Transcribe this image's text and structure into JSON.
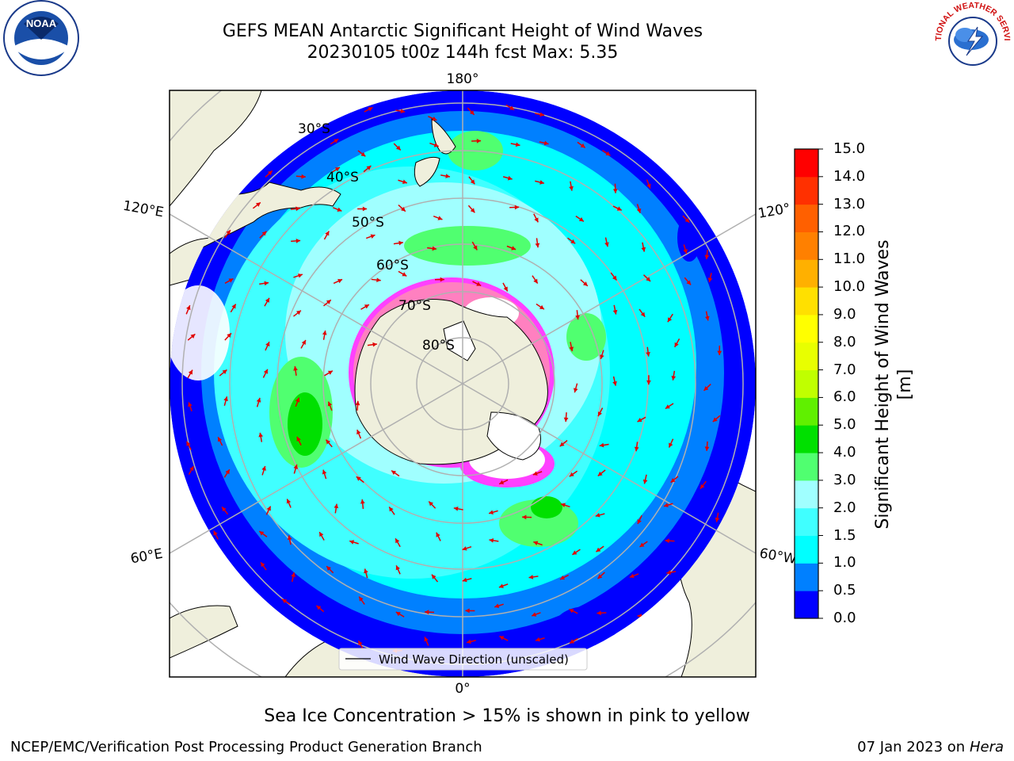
{
  "header": {
    "title_line1": "GEFS MEAN Antarctic Significant Height of Wind Waves",
    "title_line2": "20230105 t00z 144h fcst   Max: 5.35"
  },
  "map": {
    "longitude_labels": {
      "top": "180°",
      "bottom": "0°",
      "left_upper": "120°E",
      "left_lower": "60°E",
      "right_upper": "120°",
      "right_lower": "60°W"
    },
    "latitude_labels": [
      "30°S",
      "40°S",
      "50°S",
      "60°S",
      "70°S",
      "80°S"
    ],
    "legend_label": "Wind Wave Direction (unscaled)"
  },
  "colorbar": {
    "label": "Significant Height of Wind Waves [m]",
    "ticks": [
      "0.0",
      "0.5",
      "1.0",
      "1.5",
      "2.0",
      "3.0",
      "4.0",
      "5.0",
      "6.0",
      "7.0",
      "8.0",
      "9.0",
      "10.0",
      "11.0",
      "12.0",
      "13.0",
      "14.0",
      "15.0"
    ],
    "colors": [
      "#0000ff",
      "#0080ff",
      "#00ffff",
      "#40ffff",
      "#a0ffff",
      "#50ff70",
      "#00e000",
      "#60f000",
      "#c0ff00",
      "#e8ff00",
      "#ffff00",
      "#ffe000",
      "#ffb000",
      "#ff8000",
      "#ff6000",
      "#ff3000",
      "#ff0000"
    ],
    "arrow_color": "#e00000",
    "land_color": "#efefdc",
    "ice_colors": [
      "#ff40ff",
      "#ff80c0",
      "#ffffff"
    ]
  },
  "footer": {
    "note": "Sea Ice Concentration > 15% is shown in pink to yellow",
    "credit": "NCEP/EMC/Verification Post Processing Product Generation Branch",
    "date_prefix": "07 Jan 2023 on ",
    "date_machine": "Hera"
  },
  "logos": {
    "left": "NOAA",
    "right": "NATIONAL WEATHER SERVICE"
  }
}
